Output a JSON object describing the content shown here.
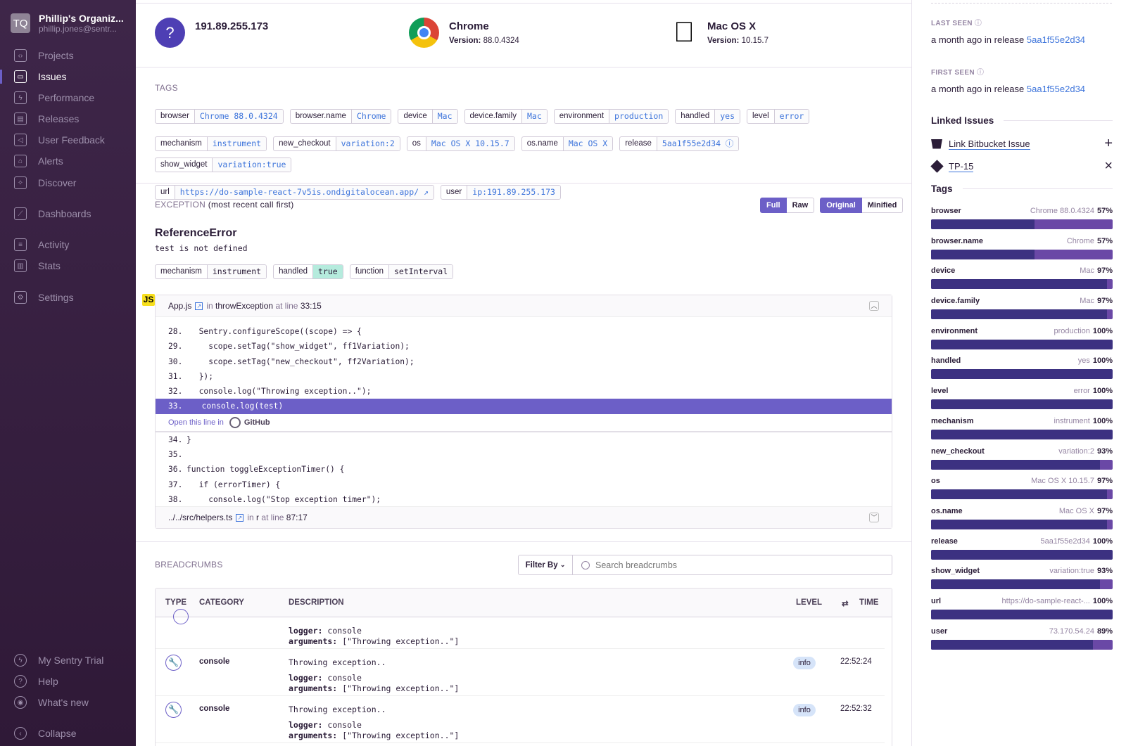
{
  "sidebar": {
    "org_initials": "TQ",
    "org_name": "Phillip's Organiz...",
    "org_email": "phillip.jones@sentr...",
    "items": [
      {
        "label": "Projects",
        "icon": "folder-code-icon"
      },
      {
        "label": "Issues",
        "icon": "inbox-icon",
        "active": true
      },
      {
        "label": "Performance",
        "icon": "lightning-icon"
      },
      {
        "label": "Releases",
        "icon": "package-icon"
      },
      {
        "label": "User Feedback",
        "icon": "megaphone-icon"
      },
      {
        "label": "Alerts",
        "icon": "siren-icon"
      },
      {
        "label": "Discover",
        "icon": "telescope-icon"
      },
      {
        "label": "Dashboards",
        "icon": "graph-icon"
      },
      {
        "label": "Activity",
        "icon": "list-icon"
      },
      {
        "label": "Stats",
        "icon": "bar-chart-icon"
      },
      {
        "label": "Settings",
        "icon": "gear-icon"
      }
    ],
    "bottom": [
      {
        "label": "My Sentry Trial",
        "icon": "lightning-circle-icon"
      },
      {
        "label": "Help",
        "icon": "question-icon"
      },
      {
        "label": "What's new",
        "icon": "broadcast-icon"
      },
      {
        "label": "Collapse",
        "icon": "collapse-icon"
      }
    ]
  },
  "context": {
    "user": {
      "title": "191.89.255.173",
      "icon": "question-icon"
    },
    "browser": {
      "title": "Chrome",
      "version_label": "Version:",
      "version": "88.0.4324",
      "icon": "chrome-icon"
    },
    "os": {
      "title": "Mac OS X",
      "version_label": "Version:",
      "version": "10.15.7",
      "icon": "apple-icon"
    }
  },
  "tags": {
    "label": "TAGS",
    "items": [
      {
        "k": "browser",
        "v": "Chrome 88.0.4324"
      },
      {
        "k": "browser.name",
        "v": "Chrome"
      },
      {
        "k": "device",
        "v": "Mac"
      },
      {
        "k": "device.family",
        "v": "Mac"
      },
      {
        "k": "environment",
        "v": "production"
      },
      {
        "k": "handled",
        "v": "yes"
      },
      {
        "k": "level",
        "v": "error"
      },
      {
        "k": "mechanism",
        "v": "instrument"
      },
      {
        "k": "new_checkout",
        "v": "variation:2"
      },
      {
        "k": "os",
        "v": "Mac OS X 10.15.7"
      },
      {
        "k": "os.name",
        "v": "Mac OS X"
      },
      {
        "k": "release",
        "v": "5aa1f55e2d34 ⓘ"
      },
      {
        "k": "show_widget",
        "v": "variation:true"
      },
      {
        "k": "url",
        "v": "https://do-sample-react-7v5is.ondigitalocean.app/ ↗"
      },
      {
        "k": "user",
        "v": "ip:191.89.255.173"
      }
    ]
  },
  "exception": {
    "label": "EXCEPTION",
    "label_suffix": "(most recent call first)",
    "buttons": {
      "full": "Full",
      "raw": "Raw",
      "original": "Original",
      "minified": "Minified"
    },
    "type": "ReferenceError",
    "message": "test is not defined",
    "mechanism": [
      {
        "k": "mechanism",
        "v": "instrument"
      },
      {
        "k": "handled",
        "v": "true"
      },
      {
        "k": "function",
        "v": "setInterval"
      }
    ],
    "frame": {
      "platform": "JS",
      "file": "App.js",
      "in": "in",
      "function": "throwException",
      "at_line": "at line",
      "line": "33:15",
      "lines_before": [
        [
          "28.",
          "  Sentry.configureScope((scope) => {"
        ],
        [
          "29.",
          "    scope.setTag(\"show_widget\", ff1Variation);"
        ],
        [
          "30.",
          "    scope.setTag(\"new_checkout\", ff2Variation);"
        ],
        [
          "31.",
          "  });"
        ],
        [
          "32.",
          "  console.log(\"Throwing exception..\");"
        ]
      ],
      "highlight": [
        "33.",
        "  console.log(test)"
      ],
      "open_in": "Open this line in",
      "github": "GitHub",
      "lines_after": [
        [
          "34.",
          "}"
        ],
        [
          "35.",
          ""
        ],
        [
          "36.",
          "function toggleExceptionTimer() {"
        ],
        [
          "37.",
          "  if (errorTimer) {"
        ],
        [
          "38.",
          "    console.log(\"Stop exception timer\");"
        ]
      ]
    },
    "frame2": {
      "file": "../../src/helpers.ts",
      "in": "in",
      "function": "r",
      "at_line": "at line",
      "line": "87:17"
    }
  },
  "breadcrumbs": {
    "label": "BREADCRUMBS",
    "filter": "Filter By",
    "search_placeholder": "Search breadcrumbs",
    "columns": {
      "type": "TYPE",
      "category": "CATEGORY",
      "description": "DESCRIPTION",
      "level": "LEVEL",
      "time": "TIME"
    },
    "partial": {
      "logger": "logger:",
      "logger_v": "console",
      "args": "arguments:",
      "args_v": "[\"Throwing exception..\"]"
    },
    "rows": [
      {
        "category": "console",
        "message": "Throwing exception..",
        "logger": "logger:",
        "logger_v": "console",
        "args": "arguments:",
        "args_v": "[\"Throwing exception..\"]",
        "level": "info",
        "time": "22:52:24"
      },
      {
        "category": "console",
        "message": "Throwing exception..",
        "logger": "logger:",
        "logger_v": "console",
        "args": "arguments:",
        "args_v": "[\"Throwing exception..\"]",
        "level": "info",
        "time": "22:52:32"
      }
    ]
  },
  "right": {
    "last_seen": {
      "label": "LAST SEEN",
      "text": "a month ago in release",
      "release": "5aa1f55e2d34"
    },
    "first_seen": {
      "label": "FIRST SEEN",
      "text": "a month ago in release",
      "release": "5aa1f55e2d34"
    },
    "linked_issues": {
      "label": "Linked Issues",
      "items": [
        {
          "label": "Link Bitbucket Issue",
          "icon": "bitbucket-icon",
          "action": "+"
        },
        {
          "label": "TP-15",
          "icon": "jira-icon",
          "action": "×"
        }
      ]
    },
    "tags_label": "Tags",
    "tags": [
      {
        "name": "browser",
        "value": "Chrome 88.0.4324",
        "pct": "57%",
        "p": 57
      },
      {
        "name": "browser.name",
        "value": "Chrome",
        "pct": "57%",
        "p": 57
      },
      {
        "name": "device",
        "value": "Mac",
        "pct": "97%",
        "p": 97
      },
      {
        "name": "device.family",
        "value": "Mac",
        "pct": "97%",
        "p": 97
      },
      {
        "name": "environment",
        "value": "production",
        "pct": "100%",
        "p": 100
      },
      {
        "name": "handled",
        "value": "yes",
        "pct": "100%",
        "p": 100
      },
      {
        "name": "level",
        "value": "error",
        "pct": "100%",
        "p": 100
      },
      {
        "name": "mechanism",
        "value": "instrument",
        "pct": "100%",
        "p": 100
      },
      {
        "name": "new_checkout",
        "value": "variation:2",
        "pct": "93%",
        "p": 93
      },
      {
        "name": "os",
        "value": "Mac OS X 10.15.7",
        "pct": "97%",
        "p": 97
      },
      {
        "name": "os.name",
        "value": "Mac OS X",
        "pct": "97%",
        "p": 97
      },
      {
        "name": "release",
        "value": "5aa1f55e2d34",
        "pct": "100%",
        "p": 100
      },
      {
        "name": "show_widget",
        "value": "variation:true",
        "pct": "93%",
        "p": 93
      },
      {
        "name": "url",
        "value": "https://do-sample-react-...",
        "pct": "100%",
        "p": 100
      },
      {
        "name": "user",
        "value": "73.170.54.24",
        "pct": "89%",
        "p": 89
      }
    ]
  },
  "colors": {
    "accent": "#6c5fc7",
    "sidebar": "#3e2649",
    "link": "#3d74db",
    "bar": "#3c3181"
  }
}
